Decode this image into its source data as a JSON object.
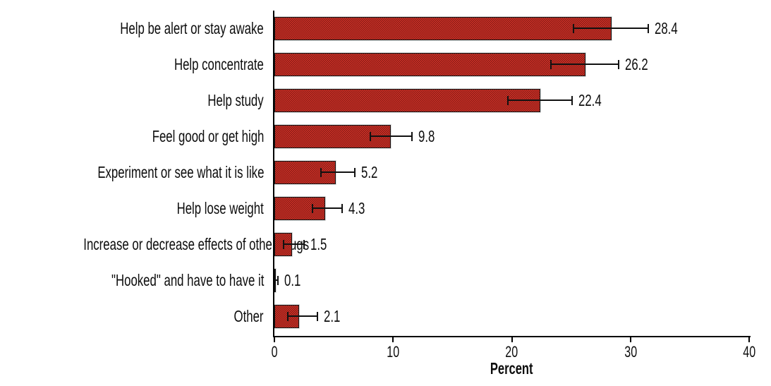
{
  "chart_data": {
    "type": "bar",
    "orientation": "horizontal",
    "title": "",
    "xlabel": "Percent",
    "ylabel": "",
    "xlim": [
      0,
      40
    ],
    "xticks": [
      0,
      10,
      20,
      30,
      40
    ],
    "grid": false,
    "legend": "none",
    "bar_color": "#d7352a",
    "bar_pattern": "dark-red-checker-hatch",
    "axis_color": "#000000",
    "text_color": "#0d0d0d",
    "categories": [
      "Help be alert or stay awake",
      "Help concentrate",
      "Help study",
      "Feel good or get high",
      "Experiment or see what it is like",
      "Help lose weight",
      "Increase or decrease effects of other drugs",
      "\"Hooked\" and have to have it",
      "Other"
    ],
    "values": [
      28.4,
      26.2,
      22.4,
      9.8,
      5.2,
      4.3,
      1.5,
      0.1,
      2.1
    ],
    "value_labels": [
      "28.4",
      "26.2",
      "22.4",
      "9.8",
      "5.2",
      "4.3",
      "1.5",
      "0.1",
      "2.1"
    ],
    "error_low": [
      25.2,
      23.3,
      19.7,
      8.1,
      3.9,
      3.2,
      0.8,
      0.0,
      1.1
    ],
    "error_high": [
      31.5,
      29.0,
      25.1,
      11.6,
      6.8,
      5.7,
      2.5,
      0.3,
      3.6
    ]
  }
}
